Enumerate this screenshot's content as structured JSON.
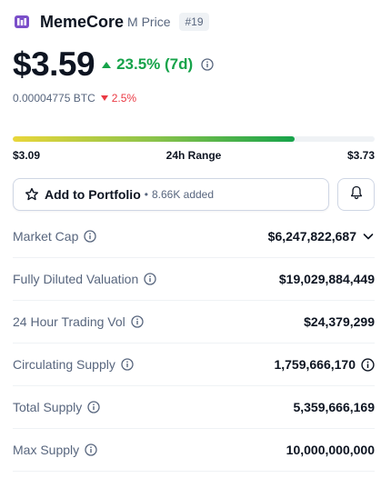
{
  "coin": {
    "name": "MemeCore",
    "symbol": "M Price",
    "rank": "#19",
    "logo_icon": "memecore-logo-icon",
    "logo_color": "#7b4fc9"
  },
  "price": {
    "value": "$3.59",
    "change": "23.5% (7d)",
    "change_color": "#16a34a",
    "btc_value": "0.00004775 BTC",
    "btc_change": "2.5%",
    "btc_change_color": "#ea3943"
  },
  "range": {
    "low": "$3.09",
    "label": "24h Range",
    "high": "$3.73",
    "fill_fraction": 0.78
  },
  "portfolio": {
    "label": "Add to Portfolio",
    "added": "8.66K added"
  },
  "stats": [
    {
      "label": "Market Cap",
      "value": "$6,247,822,687",
      "trail_icon": "chevron-down-icon"
    },
    {
      "label": "Fully Diluted Valuation",
      "value": "$19,029,884,449"
    },
    {
      "label": "24 Hour Trading Vol",
      "value": "$24,379,299"
    },
    {
      "label": "Circulating Supply",
      "value": "1,759,666,170",
      "trail_icon": "info-icon"
    },
    {
      "label": "Total Supply",
      "value": "5,359,666,169"
    },
    {
      "label": "Max Supply",
      "value": "10,000,000,000"
    }
  ]
}
